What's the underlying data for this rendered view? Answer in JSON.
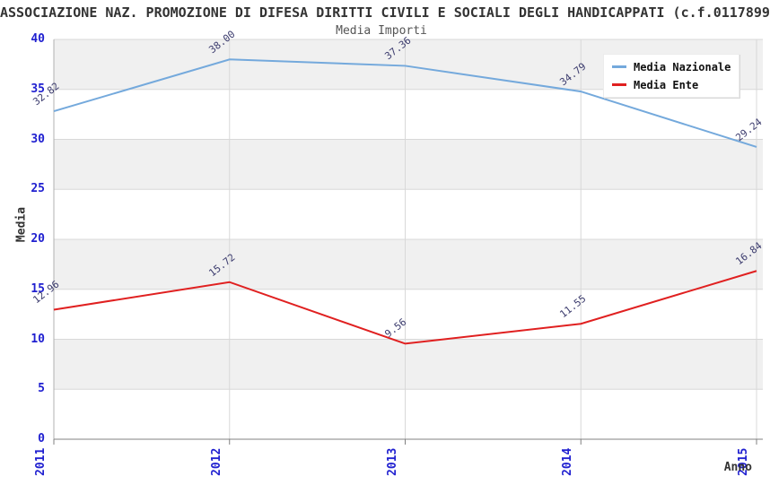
{
  "header": {
    "title": "ASSOCIAZIONE NAZ. PROMOZIONE DI DIFESA DIRITTI CIVILI E SOCIALI DEGLI HANDICAPPATI (c.f.0117899",
    "subtitle": "Media Importi"
  },
  "chart_data": {
    "type": "line",
    "title": "Media Importi",
    "xlabel": "Anno",
    "ylabel": "Media",
    "categories": [
      "2011",
      "2012",
      "2013",
      "2014",
      "2015"
    ],
    "series": [
      {
        "name": "Media Nazionale",
        "color": "#74a9dc",
        "values": [
          32.82,
          38.0,
          37.36,
          34.79,
          29.24
        ]
      },
      {
        "name": "Media Ente",
        "color": "#e02020",
        "values": [
          12.96,
          15.72,
          9.56,
          11.55,
          16.84
        ]
      }
    ],
    "ylim": [
      0,
      40
    ],
    "ytick_step": 5,
    "grid": true,
    "legend_position": "top-right",
    "band_colors": [
      "#f0f0f0",
      "#ffffff"
    ],
    "tick_label_color": "#2020d0",
    "value_label_color": "#3c3c6e",
    "gridline_color": "#d8d8d8",
    "axis_line_color": "#808080"
  }
}
